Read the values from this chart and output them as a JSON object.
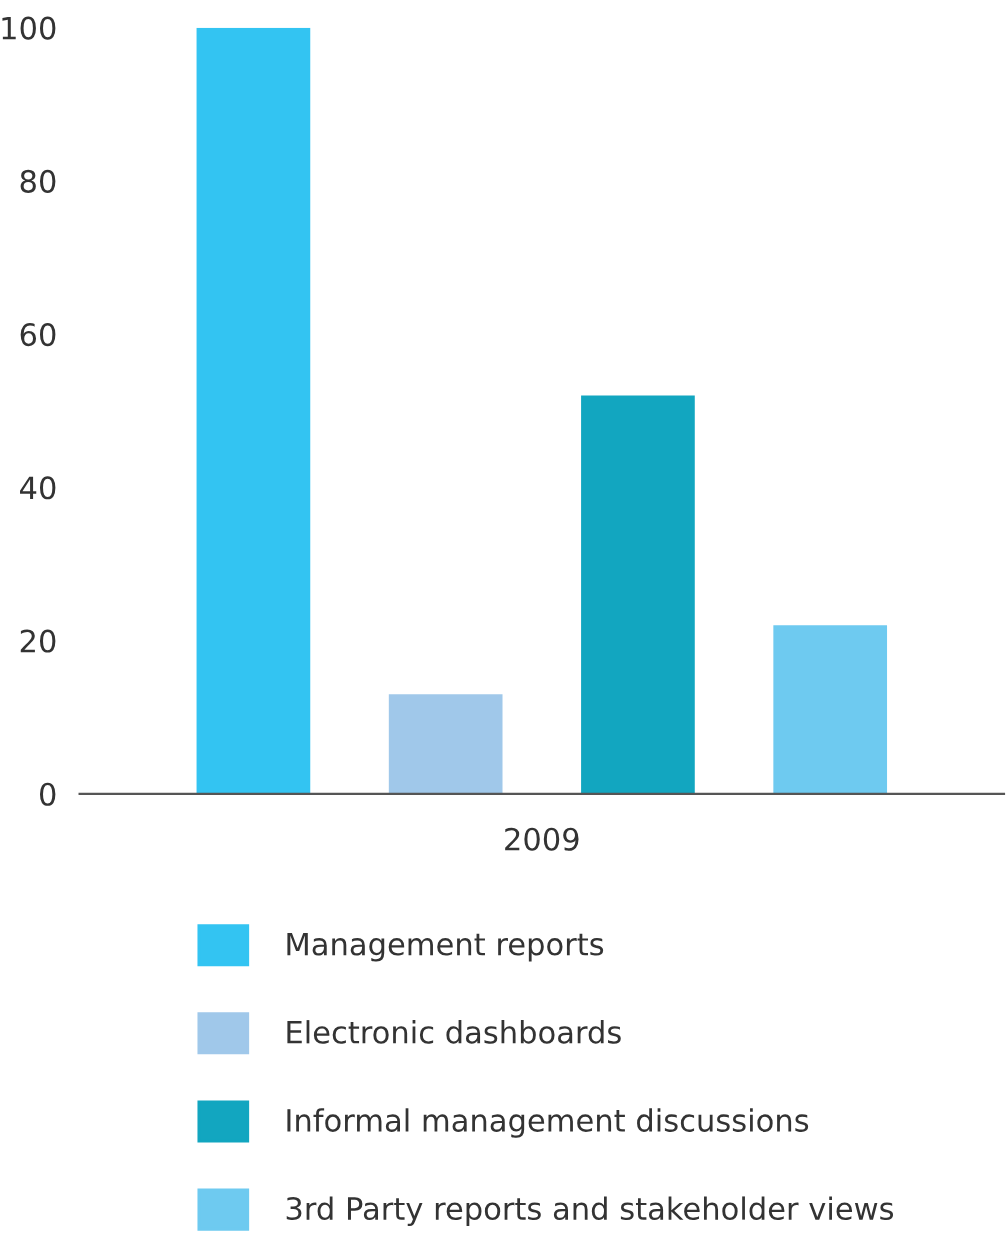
{
  "chart_data": {
    "type": "bar",
    "categories": [
      "2009"
    ],
    "series": [
      {
        "name": "Management reports",
        "color": "#33c4f2",
        "values": [
          100
        ]
      },
      {
        "name": "Electronic dashboards",
        "color": "#a0c8ea",
        "values": [
          13
        ]
      },
      {
        "name": "Informal management discussions",
        "color": "#12a6c0",
        "values": [
          52
        ]
      },
      {
        "name": "3rd Party reports and stakeholder views",
        "color": "#6ecaf0",
        "values": [
          22
        ]
      }
    ],
    "ylim": [
      0,
      100
    ],
    "yticks": [
      0,
      20,
      40,
      60,
      80,
      100
    ],
    "grid": false,
    "legend": "bottom"
  }
}
